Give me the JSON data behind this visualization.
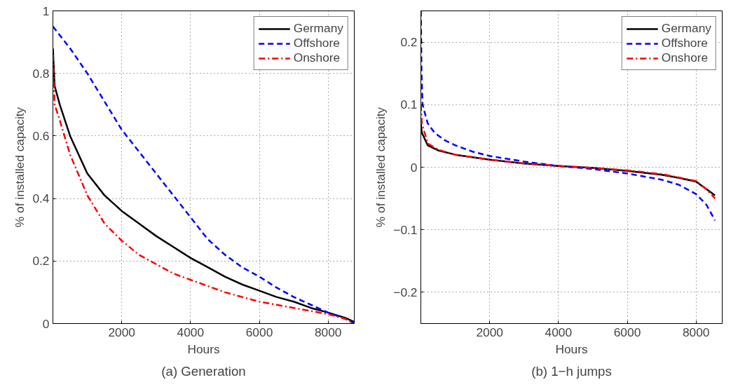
{
  "chart_data": [
    {
      "type": "line",
      "title": "(a) Generation",
      "xlabel": "Hours",
      "ylabel": "% of installed capacity",
      "xlim": [
        0,
        8760
      ],
      "ylim": [
        0,
        1
      ],
      "xticks": [
        2000,
        4000,
        6000,
        8000
      ],
      "yticks": [
        0,
        0.2,
        0.4,
        0.6,
        0.8,
        1
      ],
      "grid": true,
      "legend": "top right",
      "series": [
        {
          "name": "Germany",
          "color": "#000000",
          "line_style": "solid",
          "x": [
            0,
            50,
            200,
            500,
            1000,
            1500,
            2000,
            2500,
            3000,
            3500,
            4000,
            4500,
            5000,
            5500,
            6000,
            6500,
            7000,
            7500,
            8000,
            8500,
            8760
          ],
          "values": [
            0.88,
            0.76,
            0.7,
            0.6,
            0.48,
            0.41,
            0.36,
            0.32,
            0.28,
            0.245,
            0.21,
            0.18,
            0.15,
            0.125,
            0.105,
            0.085,
            0.07,
            0.05,
            0.035,
            0.018,
            0.005
          ]
        },
        {
          "name": "Offshore",
          "color": "#0000ff",
          "line_style": "dashed",
          "x": [
            0,
            500,
            1000,
            1500,
            2000,
            2500,
            3000,
            3500,
            4000,
            4500,
            5000,
            5500,
            6000,
            6500,
            7000,
            7500,
            8000,
            8500,
            8760
          ],
          "values": [
            0.95,
            0.88,
            0.8,
            0.71,
            0.62,
            0.55,
            0.48,
            0.41,
            0.34,
            0.27,
            0.22,
            0.18,
            0.15,
            0.115,
            0.085,
            0.06,
            0.035,
            0.015,
            0
          ]
        },
        {
          "name": "Onshore",
          "color": "#ff0000",
          "line_style": "dashdot",
          "x": [
            0,
            50,
            200,
            500,
            1000,
            1500,
            2000,
            2500,
            3000,
            3500,
            4000,
            4500,
            5000,
            5500,
            6000,
            6500,
            7000,
            7500,
            8000,
            8500,
            8760
          ],
          "values": [
            0.86,
            0.7,
            0.65,
            0.54,
            0.41,
            0.32,
            0.265,
            0.22,
            0.19,
            0.16,
            0.14,
            0.12,
            0.1,
            0.085,
            0.07,
            0.06,
            0.05,
            0.04,
            0.03,
            0.015,
            0
          ]
        }
      ]
    },
    {
      "type": "line",
      "title": "(b) 1−h jumps",
      "xlabel": "Hours",
      "ylabel": "% of installed capacity",
      "xlim": [
        0,
        8760
      ],
      "ylim": [
        -0.25,
        0.25
      ],
      "xticks": [
        2000,
        4000,
        6000,
        8000
      ],
      "yticks": [
        {
          "value": -0.2,
          "label": "−0.2"
        },
        {
          "value": -0.1,
          "label": "−0.1"
        },
        0,
        0.1,
        0.2
      ],
      "grid": true,
      "legend": "top right",
      "series": [
        {
          "name": "Germany",
          "color": "#000000",
          "line_style": "solid",
          "x": [
            0,
            30,
            200,
            500,
            1000,
            2000,
            3000,
            4000,
            5000,
            6000,
            7000,
            7500,
            8000,
            8300,
            8550
          ],
          "values": [
            0.07,
            0.055,
            0.035,
            0.027,
            0.02,
            0.012,
            0.006,
            0.002,
            -0.001,
            -0.006,
            -0.012,
            -0.017,
            -0.023,
            -0.035,
            -0.045
          ]
        },
        {
          "name": "Offshore",
          "color": "#0000ff",
          "line_style": "dashed",
          "x": [
            0,
            20,
            50,
            200,
            400,
            700,
            1000,
            1500,
            2000,
            3000,
            4000,
            5000,
            6000,
            7000,
            7500,
            8000,
            8300,
            8550
          ],
          "values": [
            0.25,
            0.15,
            0.1,
            0.07,
            0.055,
            0.043,
            0.035,
            0.025,
            0.018,
            0.009,
            0.002,
            -0.003,
            -0.01,
            -0.02,
            -0.028,
            -0.043,
            -0.06,
            -0.085
          ]
        },
        {
          "name": "Onshore",
          "color": "#ff0000",
          "line_style": "dashdot",
          "x": [
            0,
            30,
            200,
            500,
            1000,
            2000,
            3000,
            4000,
            5000,
            6000,
            7000,
            8000,
            8300,
            8550
          ],
          "values": [
            0.1,
            0.07,
            0.038,
            0.028,
            0.02,
            0.012,
            0.006,
            0.002,
            -0.001,
            -0.005,
            -0.011,
            -0.022,
            -0.035,
            -0.05
          ]
        }
      ]
    }
  ]
}
